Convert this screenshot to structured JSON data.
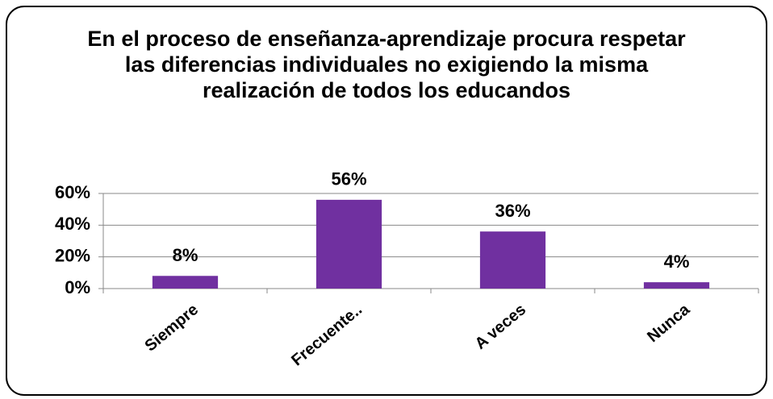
{
  "chart_data": {
    "type": "bar",
    "title": "En el proceso de enseñanza-aprendizaje procura respetar las diferencias individuales no exigiendo la misma realización de todos los educandos",
    "categories": [
      "Siempre",
      "Frecuente..",
      "A veces",
      "Nunca"
    ],
    "values": [
      8,
      56,
      36,
      4
    ],
    "value_labels": [
      "8%",
      "56%",
      "36%",
      "4%"
    ],
    "color": "#7030a0",
    "ylim": [
      0,
      60
    ],
    "yticks": [
      {
        "value": 0,
        "label": "0%"
      },
      {
        "value": 20,
        "label": "20%"
      },
      {
        "value": 40,
        "label": "40%"
      },
      {
        "value": 60,
        "label": "60%"
      }
    ],
    "grid": true
  }
}
